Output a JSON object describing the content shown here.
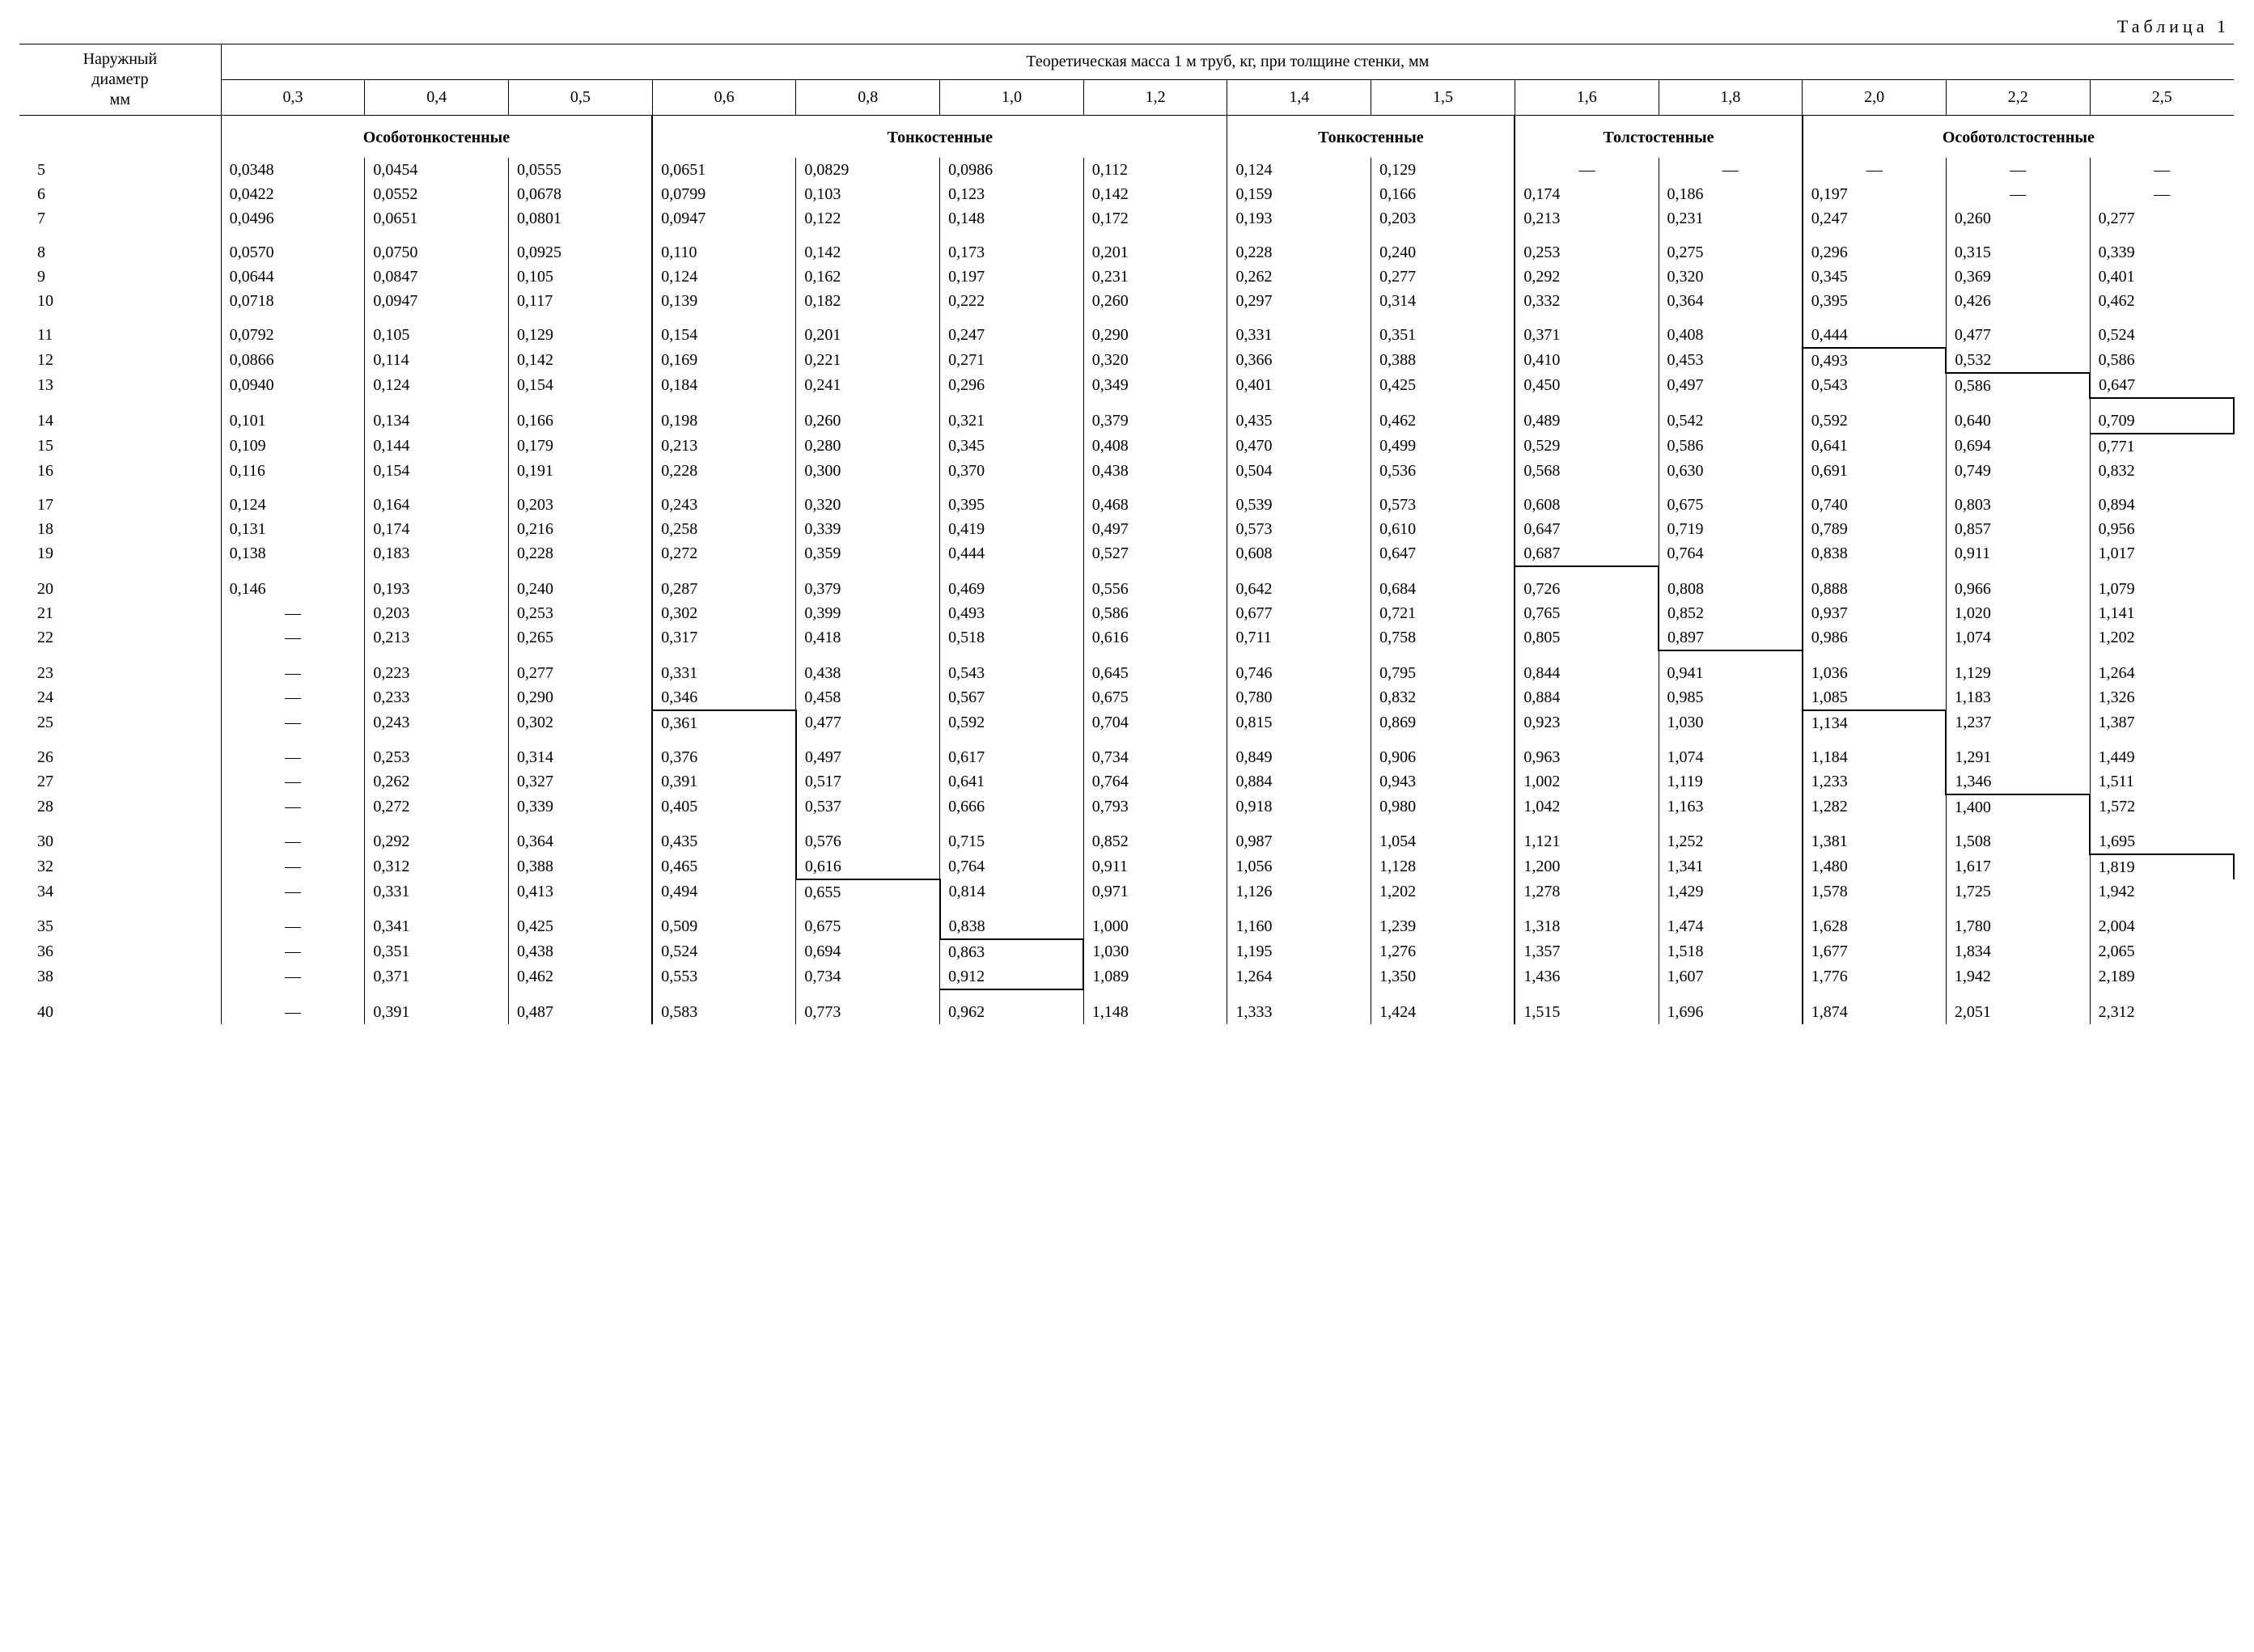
{
  "caption": "Таблица 1",
  "header": {
    "diam": "Наружный диаметр, мм",
    "mass": "Теоретическая масса 1 м труб, кг, при толщине стенки, мм"
  },
  "thickness": [
    "0,3",
    "0,4",
    "0,5",
    "0,6",
    "0,8",
    "1,0",
    "1,2",
    "1,4",
    "1,5",
    "1,6",
    "1,8",
    "2,0",
    "2,2",
    "2,5"
  ],
  "groups": [
    "Особотонкостенные",
    "Тонкостенные",
    "Тонкостенные",
    "Толстостенные",
    "Особотолстостенные"
  ],
  "group_spans": [
    3,
    4,
    2,
    2,
    3
  ],
  "font_family": "Times New Roman",
  "base_fontsize": 20,
  "rulesets": {
    "header_rule_weight": 1.5,
    "step_rule_weight": 2.5,
    "sep_rule_weight": 1
  },
  "rows": [
    {
      "d": "5",
      "v": [
        "0,0348",
        "0,0454",
        "0,0555",
        "0,0651",
        "0,0829",
        "0,0986",
        "0,112",
        "0,124",
        "0,129",
        "—",
        "—",
        "—",
        "—",
        "—"
      ]
    },
    {
      "d": "6",
      "v": [
        "0,0422",
        "0,0552",
        "0,0678",
        "0,0799",
        "0,103",
        "0,123",
        "0,142",
        "0,159",
        "0,166",
        "0,174",
        "0,186",
        "0,197",
        "—",
        "—"
      ]
    },
    {
      "d": "7",
      "v": [
        "0,0496",
        "0,0651",
        "0,0801",
        "0,0947",
        "0,122",
        "0,148",
        "0,172",
        "0,193",
        "0,203",
        "0,213",
        "0,231",
        "0,247",
        "0,260",
        "0,277"
      ]
    },
    {
      "spacer": true
    },
    {
      "d": "8",
      "v": [
        "0,0570",
        "0,0750",
        "0,0925",
        "0,110",
        "0,142",
        "0,173",
        "0,201",
        "0,228",
        "0,240",
        "0,253",
        "0,275",
        "0,296",
        "0,315",
        "0,339"
      ]
    },
    {
      "d": "9",
      "v": [
        "0,0644",
        "0,0847",
        "0,105",
        "0,124",
        "0,162",
        "0,197",
        "0,231",
        "0,262",
        "0,277",
        "0,292",
        "0,320",
        "0,345",
        "0,369",
        "0,401"
      ]
    },
    {
      "d": "10",
      "v": [
        "0,0718",
        "0,0947",
        "0,117",
        "0,139",
        "0,182",
        "0,222",
        "0,260",
        "0,297",
        "0,314",
        "0,332",
        "0,364",
        "0,395",
        "0,426",
        "0,462"
      ]
    },
    {
      "spacer": true
    },
    {
      "d": "11",
      "v": [
        "0,0792",
        "0,105",
        "0,129",
        "0,154",
        "0,201",
        "0,247",
        "0,290",
        "0,331",
        "0,351",
        "0,371",
        "0,408",
        "0,444",
        "0,477",
        "0,524"
      ],
      "step": {
        "11": [
          "thick-bottom"
        ]
      }
    },
    {
      "d": "12",
      "v": [
        "0,0866",
        "0,114",
        "0,142",
        "0,169",
        "0,221",
        "0,271",
        "0,320",
        "0,366",
        "0,388",
        "0,410",
        "0,453",
        "0,493",
        "0,532",
        "0,586"
      ],
      "step": {
        "11": [
          "thick-right"
        ],
        "12": [
          "thick-bottom"
        ]
      }
    },
    {
      "d": "13",
      "v": [
        "0,0940",
        "0,124",
        "0,154",
        "0,184",
        "0,241",
        "0,296",
        "0,349",
        "0,401",
        "0,425",
        "0,450",
        "0,497",
        "0,543",
        "0,586",
        "0,647"
      ],
      "step": {
        "12": [
          "thick-right"
        ],
        "13": [
          "thick-bottom"
        ]
      }
    },
    {
      "spacer": true,
      "step": {
        "13": [
          "thick-right"
        ]
      }
    },
    {
      "d": "14",
      "v": [
        "0,101",
        "0,134",
        "0,166",
        "0,198",
        "0,260",
        "0,321",
        "0,379",
        "0,435",
        "0,462",
        "0,489",
        "0,542",
        "0,592",
        "0,640",
        "0,709"
      ],
      "step": {
        "13": [
          "thick-bottom",
          "thick-right"
        ]
      }
    },
    {
      "d": "15",
      "v": [
        "0,109",
        "0,144",
        "0,179",
        "0,213",
        "0,280",
        "0,345",
        "0,408",
        "0,470",
        "0,499",
        "0,529",
        "0,586",
        "0,641",
        "0,694",
        "0,771"
      ],
      "step": {
        "13": [
          "thick-top"
        ]
      }
    },
    {
      "d": "16",
      "v": [
        "0,116",
        "0,154",
        "0,191",
        "0,228",
        "0,300",
        "0,370",
        "0,438",
        "0,504",
        "0,536",
        "0,568",
        "0,630",
        "0,691",
        "0,749",
        "0,832"
      ]
    },
    {
      "spacer": true
    },
    {
      "d": "17",
      "v": [
        "0,124",
        "0,164",
        "0,203",
        "0,243",
        "0,320",
        "0,395",
        "0,468",
        "0,539",
        "0,573",
        "0,608",
        "0,675",
        "0,740",
        "0,803",
        "0,894"
      ]
    },
    {
      "d": "18",
      "v": [
        "0,131",
        "0,174",
        "0,216",
        "0,258",
        "0,339",
        "0,419",
        "0,497",
        "0,573",
        "0,610",
        "0,647",
        "0,719",
        "0,789",
        "0,857",
        "0,956"
      ]
    },
    {
      "d": "19",
      "v": [
        "0,138",
        "0,183",
        "0,228",
        "0,272",
        "0,359",
        "0,444",
        "0,527",
        "0,608",
        "0,647",
        "0,687",
        "0,764",
        "0,838",
        "0,911",
        "1,017"
      ],
      "step": {
        "9": [
          "thick-bottom"
        ]
      }
    },
    {
      "spacer": true,
      "step": {
        "9": [
          "thick-right"
        ]
      }
    },
    {
      "d": "20",
      "v": [
        "0,146",
        "0,193",
        "0,240",
        "0,287",
        "0,379",
        "0,469",
        "0,556",
        "0,642",
        "0,684",
        "0,726",
        "0,808",
        "0,888",
        "0,966",
        "1,079"
      ],
      "step": {
        "9": [
          "thick-right"
        ]
      }
    },
    {
      "d": "21",
      "v": [
        "—",
        "0,203",
        "0,253",
        "0,302",
        "0,399",
        "0,493",
        "0,586",
        "0,677",
        "0,721",
        "0,765",
        "0,852",
        "0,937",
        "1,020",
        "1,141"
      ],
      "step": {
        "9": [
          "thick-right"
        ]
      }
    },
    {
      "d": "22",
      "v": [
        "—",
        "0,213",
        "0,265",
        "0,317",
        "0,418",
        "0,518",
        "0,616",
        "0,711",
        "0,758",
        "0,805",
        "0,897",
        "0,986",
        "1,074",
        "1,202"
      ],
      "step": {
        "9": [
          "thick-right"
        ],
        "10": [
          "thick-bottom"
        ]
      }
    },
    {
      "spacer": true,
      "step": {
        "10": [
          "thick-right"
        ]
      }
    },
    {
      "d": "23",
      "v": [
        "—",
        "0,223",
        "0,277",
        "0,331",
        "0,438",
        "0,543",
        "0,645",
        "0,746",
        "0,795",
        "0,844",
        "0,941",
        "1,036",
        "1,129",
        "1,264"
      ],
      "step": {
        "10": [
          "thick-right"
        ]
      }
    },
    {
      "d": "24",
      "v": [
        "—",
        "0,233",
        "0,290",
        "0,346",
        "0,458",
        "0,567",
        "0,675",
        "0,780",
        "0,832",
        "0,884",
        "0,985",
        "1,085",
        "1,183",
        "1,326"
      ],
      "step": {
        "3": [
          "thick-bottom"
        ],
        "10": [
          "thick-right"
        ],
        "11": [
          "thick-bottom"
        ]
      }
    },
    {
      "d": "25",
      "v": [
        "—",
        "0,243",
        "0,302",
        "0,361",
        "0,477",
        "0,592",
        "0,704",
        "0,815",
        "0,869",
        "0,923",
        "1,030",
        "1,134",
        "1,237",
        "1,387"
      ],
      "step": {
        "3": [
          "thick-right"
        ],
        "11": [
          "thick-right"
        ]
      }
    },
    {
      "spacer": true,
      "step": {
        "3": [
          "thick-right"
        ],
        "11": [
          "thick-right"
        ]
      }
    },
    {
      "d": "26",
      "v": [
        "—",
        "0,253",
        "0,314",
        "0,376",
        "0,497",
        "0,617",
        "0,734",
        "0,849",
        "0,906",
        "0,963",
        "1,074",
        "1,184",
        "1,291",
        "1,449"
      ],
      "step": {
        "3": [
          "thick-right"
        ],
        "11": [
          "thick-right"
        ]
      }
    },
    {
      "d": "27",
      "v": [
        "—",
        "0,262",
        "0,327",
        "0,391",
        "0,517",
        "0,641",
        "0,764",
        "0,884",
        "0,943",
        "1,002",
        "1,119",
        "1,233",
        "1,346",
        "1,511"
      ],
      "step": {
        "3": [
          "thick-right"
        ],
        "11": [
          "thick-right"
        ],
        "12": [
          "thick-bottom"
        ]
      }
    },
    {
      "d": "28",
      "v": [
        "—",
        "0,272",
        "0,339",
        "0,405",
        "0,537",
        "0,666",
        "0,793",
        "0,918",
        "0,980",
        "1,042",
        "1,163",
        "1,282",
        "1,400",
        "1,572"
      ],
      "step": {
        "3": [
          "thick-right"
        ],
        "12": [
          "thick-right"
        ]
      }
    },
    {
      "spacer": true,
      "step": {
        "3": [
          "thick-right"
        ],
        "12": [
          "thick-right"
        ]
      }
    },
    {
      "d": "30",
      "v": [
        "—",
        "0,292",
        "0,364",
        "0,435",
        "0,576",
        "0,715",
        "0,852",
        "0,987",
        "1,054",
        "1,121",
        "1,252",
        "1,381",
        "1,508",
        "1,695"
      ],
      "step": {
        "3": [
          "thick-right"
        ],
        "12": [
          "thick-right"
        ],
        "13": [
          "thick-bottom"
        ]
      }
    },
    {
      "d": "32",
      "v": [
        "—",
        "0,312",
        "0,388",
        "0,465",
        "0,616",
        "0,764",
        "0,911",
        "1,056",
        "1,128",
        "1,200",
        "1,341",
        "1,480",
        "1,617",
        "1,819"
      ],
      "step": {
        "3": [
          "thick-right"
        ],
        "4": [
          "thick-bottom"
        ],
        "13": [
          "thick-right",
          "thick-top"
        ]
      }
    },
    {
      "d": "34",
      "v": [
        "—",
        "0,331",
        "0,413",
        "0,494",
        "0,655",
        "0,814",
        "0,971",
        "1,126",
        "1,202",
        "1,278",
        "1,429",
        "1,578",
        "1,725",
        "1,942"
      ],
      "step": {
        "4": [
          "thick-right"
        ]
      }
    },
    {
      "spacer": true,
      "step": {
        "4": [
          "thick-right"
        ]
      }
    },
    {
      "d": "35",
      "v": [
        "—",
        "0,341",
        "0,425",
        "0,509",
        "0,675",
        "0,838",
        "1,000",
        "1,160",
        "1,239",
        "1,318",
        "1,474",
        "1,628",
        "1,780",
        "2,004"
      ],
      "step": {
        "4": [
          "thick-right"
        ],
        "5": [
          "thick-bottom"
        ]
      }
    },
    {
      "d": "36",
      "v": [
        "—",
        "0,351",
        "0,438",
        "0,524",
        "0,694",
        "0,863",
        "1,030",
        "1,195",
        "1,276",
        "1,357",
        "1,518",
        "1,677",
        "1,834",
        "2,065"
      ],
      "step": {
        "5": [
          "thick-right"
        ]
      }
    },
    {
      "d": "38",
      "v": [
        "—",
        "0,371",
        "0,462",
        "0,553",
        "0,734",
        "0,912",
        "1,089",
        "1,264",
        "1,350",
        "1,436",
        "1,607",
        "1,776",
        "1,942",
        "2,189"
      ],
      "step": {
        "5": [
          "thick-right",
          "thick-bottom"
        ]
      }
    },
    {
      "spacer": true
    },
    {
      "d": "40",
      "v": [
        "—",
        "0,391",
        "0,487",
        "0,583",
        "0,773",
        "0,962",
        "1,148",
        "1,333",
        "1,424",
        "1,515",
        "1,696",
        "1,874",
        "2,051",
        "2,312"
      ]
    }
  ],
  "colors": {
    "background": "#ffffff",
    "text": "#000000",
    "rules": "#000000"
  }
}
